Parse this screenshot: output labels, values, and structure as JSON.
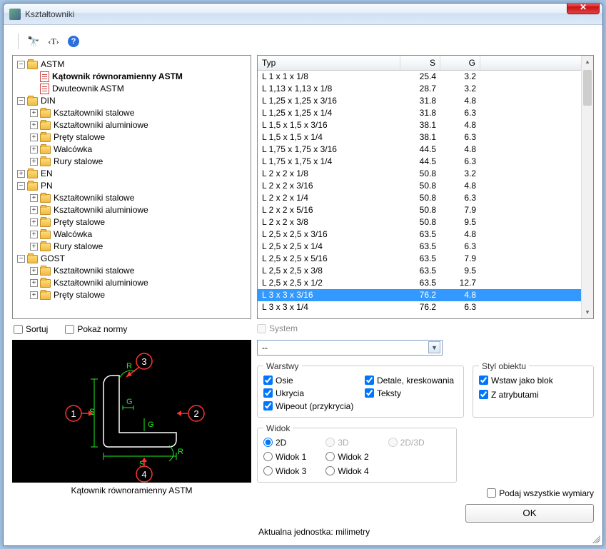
{
  "window": {
    "title": "Kształtowniki"
  },
  "tree": [
    {
      "label": "ASTM",
      "type": "folder",
      "exp": "-",
      "children": [
        {
          "label": "Kątownik równoramienny ASTM",
          "type": "doc",
          "bold": true
        },
        {
          "label": "Dwuteownik ASTM",
          "type": "doc"
        }
      ]
    },
    {
      "label": "DIN",
      "type": "folder",
      "exp": "-",
      "children": [
        {
          "label": "Kształtowniki stalowe",
          "type": "folder",
          "exp": "+"
        },
        {
          "label": "Kształtowniki aluminiowe",
          "type": "folder",
          "exp": "+"
        },
        {
          "label": "Pręty stalowe",
          "type": "folder",
          "exp": "+"
        },
        {
          "label": "Walcówka",
          "type": "folder",
          "exp": "+"
        },
        {
          "label": "Rury stalowe",
          "type": "folder",
          "exp": "+"
        }
      ]
    },
    {
      "label": "EN",
      "type": "folder",
      "exp": "+"
    },
    {
      "label": "PN",
      "type": "folder",
      "exp": "-",
      "children": [
        {
          "label": "Kształtowniki stalowe",
          "type": "folder",
          "exp": "+"
        },
        {
          "label": "Kształtowniki aluminiowe",
          "type": "folder",
          "exp": "+"
        },
        {
          "label": "Pręty stalowe",
          "type": "folder",
          "exp": "+"
        },
        {
          "label": "Walcówka",
          "type": "folder",
          "exp": "+"
        },
        {
          "label": "Rury stalowe",
          "type": "folder",
          "exp": "+"
        }
      ]
    },
    {
      "label": "GOST",
      "type": "folder",
      "exp": "-",
      "children": [
        {
          "label": "Kształtowniki stalowe",
          "type": "folder",
          "exp": "+"
        },
        {
          "label": "Kształtowniki aluminiowe",
          "type": "folder",
          "exp": "+"
        },
        {
          "label": "Pręty stalowe",
          "type": "folder",
          "exp": "+"
        }
      ]
    }
  ],
  "list": {
    "headers": {
      "typ": "Typ",
      "s": "S",
      "g": "G"
    },
    "rows": [
      {
        "typ": "L 1 x 1 x 1/8",
        "s": "25.4",
        "g": "3.2"
      },
      {
        "typ": "L 1,13 x 1,13 x 1/8",
        "s": "28.7",
        "g": "3.2"
      },
      {
        "typ": "L 1,25 x 1,25 x 3/16",
        "s": "31.8",
        "g": "4.8"
      },
      {
        "typ": "L 1,25 x 1,25 x 1/4",
        "s": "31.8",
        "g": "6.3"
      },
      {
        "typ": "L 1,5 x 1,5 x 3/16",
        "s": "38.1",
        "g": "4.8"
      },
      {
        "typ": "L 1,5 x 1,5 x 1/4",
        "s": "38.1",
        "g": "6.3"
      },
      {
        "typ": "L 1,75 x 1,75 x 3/16",
        "s": "44.5",
        "g": "4.8"
      },
      {
        "typ": "L 1,75 x 1,75 x 1/4",
        "s": "44.5",
        "g": "6.3"
      },
      {
        "typ": "L 2 x 2 x 1/8",
        "s": "50.8",
        "g": "3.2"
      },
      {
        "typ": "L 2 x 2 x 3/16",
        "s": "50.8",
        "g": "4.8"
      },
      {
        "typ": "L 2 x 2 x 1/4",
        "s": "50.8",
        "g": "6.3"
      },
      {
        "typ": "L 2 x 2 x 5/16",
        "s": "50.8",
        "g": "7.9"
      },
      {
        "typ": "L 2 x 2 x 3/8",
        "s": "50.8",
        "g": "9.5"
      },
      {
        "typ": "L 2,5 x 2,5 x 3/16",
        "s": "63.5",
        "g": "4.8"
      },
      {
        "typ": "L 2,5 x 2,5 x 1/4",
        "s": "63.5",
        "g": "6.3"
      },
      {
        "typ": "L 2,5 x 2,5 x 5/16",
        "s": "63.5",
        "g": "7.9"
      },
      {
        "typ": "L 2,5 x 2,5 x 3/8",
        "s": "63.5",
        "g": "9.5"
      },
      {
        "typ": "L 2,5 x 2,5 x 1/2",
        "s": "63.5",
        "g": "12.7"
      },
      {
        "typ": "L 3 x 3 x 3/16",
        "s": "76.2",
        "g": "4.8",
        "sel": true
      },
      {
        "typ": "L 3 x 3 x 1/4",
        "s": "76.2",
        "g": "6.3"
      }
    ]
  },
  "options": {
    "sort": "Sortuj",
    "showNorms": "Pokaż normy",
    "system": "System",
    "comboValue": "--",
    "layers": {
      "legend": "Warstwy",
      "osie": "Osie",
      "detale": "Detale, kreskowania",
      "ukrycia": "Ukrycia",
      "teksty": "Teksty",
      "wipeout": "Wipeout (przykrycia)"
    },
    "style": {
      "legend": "Styl obiektu",
      "blok": "Wstaw jako blok",
      "atr": "Z atrybutami"
    },
    "view": {
      "legend": "Widok",
      "v2d": "2D",
      "v3d": "3D",
      "v23d": "2D/3D",
      "w1": "Widok 1",
      "w2": "Widok 2",
      "w3": "Widok 3",
      "w4": "Widok 4"
    },
    "allDims": "Podaj wszystkie wymiary",
    "ok": "OK",
    "units": "Aktualna jednostka: milimetry",
    "previewCaption": "Kątownik równoramienny ASTM"
  }
}
